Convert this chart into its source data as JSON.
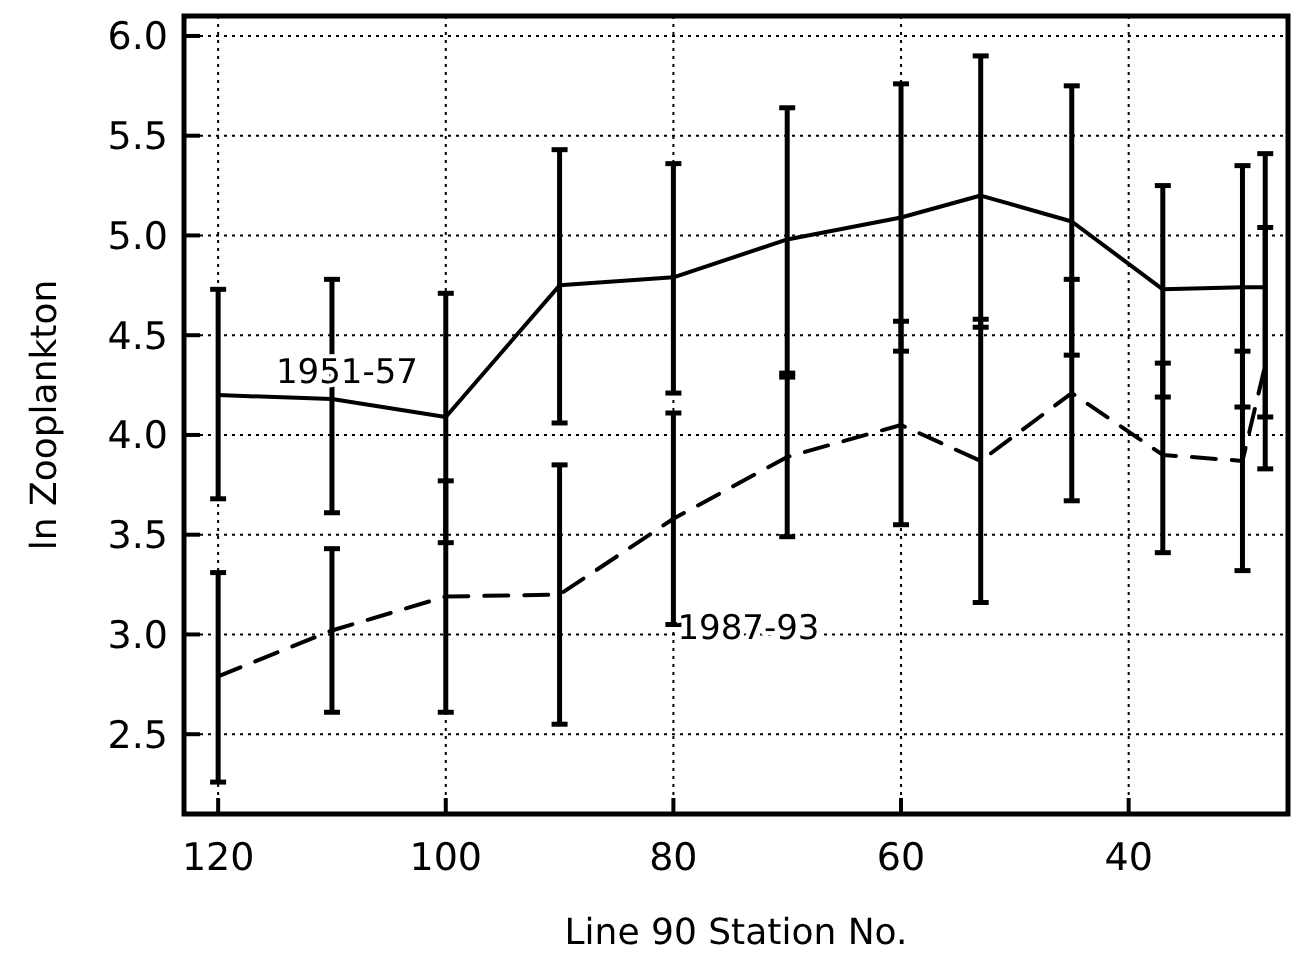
{
  "chart_data": {
    "type": "line",
    "xlabel": "Line 90 Station No.",
    "ylabel": "ln Zooplankton",
    "x": [
      120,
      110,
      100,
      90,
      80,
      70,
      60,
      53,
      45,
      37,
      30,
      28
    ],
    "xlim": [
      123,
      26
    ],
    "xticks": [
      120,
      100,
      80,
      60,
      40
    ],
    "ylim": [
      2.1,
      6.1
    ],
    "yticks": [
      {
        "value": 2.5,
        "label": "2.5"
      },
      {
        "value": 3.0,
        "label": "3.0"
      },
      {
        "value": 3.5,
        "label": "3.5"
      },
      {
        "value": 4.0,
        "label": "4.0"
      },
      {
        "value": 4.5,
        "label": "4.5"
      },
      {
        "value": 5.0,
        "label": "5.0"
      },
      {
        "value": 5.5,
        "label": "5.5"
      },
      {
        "value": 6.0,
        "label": "6.0"
      }
    ],
    "grid": true,
    "marker": "none",
    "series": [
      {
        "name": "1951-57",
        "color": "#000000",
        "line_style": "solid",
        "values": [
          4.2,
          4.18,
          4.09,
          4.75,
          4.79,
          4.98,
          5.09,
          5.2,
          5.07,
          4.73,
          4.74,
          4.74
        ],
        "errors": [
          [
            3.68,
            4.73
          ],
          [
            3.61,
            4.78
          ],
          [
            3.46,
            4.71
          ],
          [
            4.06,
            5.43
          ],
          [
            4.21,
            5.36
          ],
          [
            4.31,
            5.64
          ],
          [
            4.42,
            5.76
          ],
          [
            4.54,
            5.9
          ],
          [
            4.4,
            5.75
          ],
          [
            4.19,
            5.25
          ],
          [
            4.14,
            5.35
          ],
          [
            4.09,
            5.41
          ]
        ]
      },
      {
        "name": "1987-93",
        "color": "#000000",
        "line_style": "dashed",
        "values": [
          2.79,
          3.02,
          3.19,
          3.2,
          3.58,
          3.89,
          4.05,
          3.87,
          4.21,
          3.9,
          3.87,
          4.35
        ],
        "errors": [
          [
            2.26,
            3.31
          ],
          [
            2.61,
            3.43
          ],
          [
            2.61,
            3.77
          ],
          [
            2.55,
            3.85
          ],
          [
            3.05,
            4.11
          ],
          [
            3.49,
            4.29
          ],
          [
            3.55,
            4.57
          ],
          [
            3.16,
            4.58
          ],
          [
            3.67,
            4.78
          ],
          [
            3.41,
            4.36
          ],
          [
            3.32,
            4.42
          ],
          [
            3.83,
            5.04
          ]
        ]
      }
    ]
  }
}
